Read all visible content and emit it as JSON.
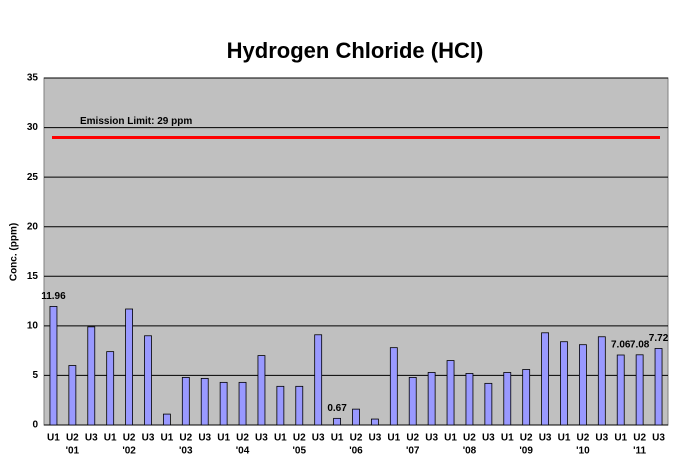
{
  "chart_data": {
    "type": "bar",
    "title": "Hydrogen Chloride  (HCl)",
    "y_label": "Conc. (ppm)",
    "categories": [
      "U1",
      "U2",
      "U3",
      "U1",
      "U2",
      "U3",
      "U1",
      "U2",
      "U3",
      "U1",
      "U2",
      "U3",
      "U1",
      "U2",
      "U3",
      "U1",
      "U2",
      "U3",
      "U1",
      "U2",
      "U3",
      "U1",
      "U2",
      "U3",
      "U1",
      "U2",
      "U3",
      "U1",
      "U2",
      "U3",
      "U1",
      "U2",
      "U3"
    ],
    "groups": [
      "'01",
      "'02",
      "'03",
      "'04",
      "'05",
      "'06",
      "'07",
      "'08",
      "'09",
      "'10",
      "'11"
    ],
    "values": [
      11.96,
      6.0,
      9.9,
      7.4,
      11.7,
      9.0,
      1.1,
      4.8,
      4.7,
      4.3,
      4.3,
      7.0,
      3.9,
      3.9,
      9.1,
      0.67,
      1.6,
      0.6,
      7.8,
      4.8,
      5.3,
      6.5,
      5.2,
      4.2,
      5.3,
      5.6,
      9.3,
      8.4,
      8.1,
      8.9,
      7.06,
      7.08,
      7.72
    ],
    "value_labels": [
      "11.96",
      null,
      null,
      null,
      null,
      null,
      null,
      null,
      null,
      null,
      null,
      null,
      null,
      null,
      null,
      "0.67",
      null,
      null,
      null,
      null,
      null,
      null,
      null,
      null,
      null,
      null,
      null,
      null,
      null,
      null,
      "7.06",
      "7.08",
      "7.72"
    ],
    "color": "#9999ff",
    "reference_line": {
      "value": 29,
      "label": "Emission  Limit: 29 ppm",
      "color": "#ff0000"
    },
    "ylim": [
      0,
      35
    ],
    "yticks": [
      0,
      5,
      10,
      15,
      20,
      25,
      30,
      35
    ],
    "grid": true
  }
}
